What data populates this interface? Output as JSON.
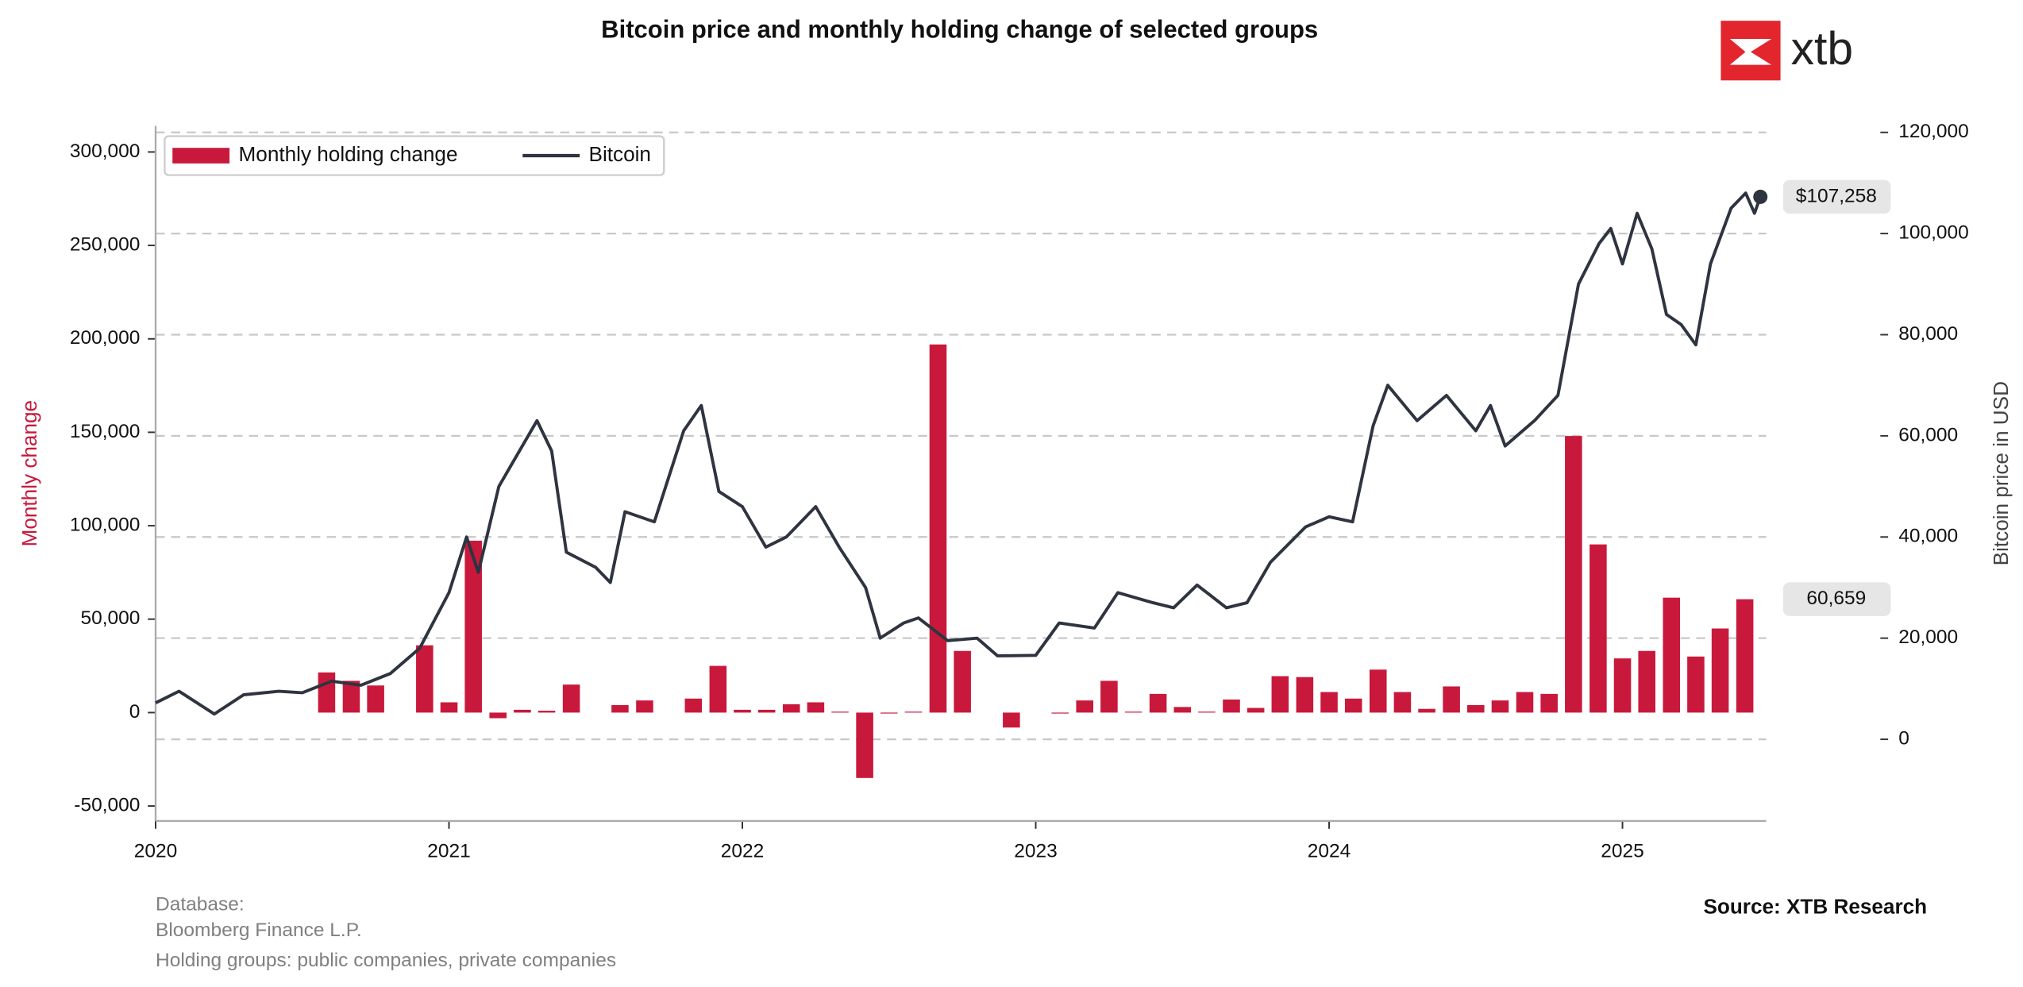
{
  "chart_data": {
    "type": "combo",
    "title": "Bitcoin price and monthly holding change of selected groups",
    "ylabel": "Monthly change",
    "y2label": "Bitcoin price in USD",
    "xlim": [
      2020,
      2025.49
    ],
    "xticks": [
      2020,
      2021,
      2022,
      2023,
      2024,
      2025
    ],
    "ylim": [
      -58000,
      314000
    ],
    "yticks": [
      {
        "value": -50000,
        "label": "-50,000"
      },
      {
        "value": 0,
        "label": "0"
      },
      {
        "value": 50000,
        "label": "50,000"
      },
      {
        "value": 100000,
        "label": "100,000"
      },
      {
        "value": 150000,
        "label": "150,000"
      },
      {
        "value": 200000,
        "label": "200,000"
      },
      {
        "value": 250000,
        "label": "250,000"
      },
      {
        "value": 300000,
        "label": "300,000"
      }
    ],
    "y2lim": [
      -16150,
      121300
    ],
    "y2ticks": [
      0,
      {
        "value": 20000,
        "label": "20,000"
      },
      {
        "value": 40000,
        "label": "40,000"
      },
      {
        "value": 60000,
        "label": "60,000"
      },
      {
        "value": 80000,
        "label": "80,000"
      },
      {
        "value": 100000,
        "label": "100,000"
      },
      {
        "value": 120000,
        "label": "120,000"
      }
    ],
    "grid": true,
    "legend": "upper left",
    "series": [
      {
        "name": "Monthly holding change",
        "type": "bar",
        "color": "#c8193c",
        "x": [
          2020.583,
          2020.667,
          2020.75,
          2020.917,
          2021.0,
          2021.083,
          2021.167,
          2021.25,
          2021.333,
          2021.417,
          2021.583,
          2021.667,
          2021.833,
          2021.917,
          2022.0,
          2022.083,
          2022.167,
          2022.25,
          2022.333,
          2022.417,
          2022.5,
          2022.583,
          2022.667,
          2022.75,
          2022.917,
          2023.083,
          2023.167,
          2023.25,
          2023.333,
          2023.417,
          2023.5,
          2023.583,
          2023.667,
          2023.75,
          2023.833,
          2023.917,
          2024.0,
          2024.083,
          2024.167,
          2024.25,
          2024.333,
          2024.417,
          2024.5,
          2024.583,
          2024.667,
          2024.75,
          2024.833,
          2024.917,
          2025.0,
          2025.083,
          2025.167,
          2025.25,
          2025.333,
          2025.417
        ],
        "values": [
          21500,
          17000,
          14500,
          36000,
          5500,
          92000,
          -3000,
          1500,
          1000,
          15000,
          4000,
          6500,
          7500,
          25000,
          1500,
          1500,
          4500,
          5500,
          500,
          -35000,
          -500,
          500,
          197000,
          33000,
          -8000,
          -500,
          6500,
          17000,
          500,
          10000,
          3000,
          500,
          7000,
          2500,
          19500,
          19000,
          11000,
          7500,
          23000,
          11000,
          2000,
          14000,
          4000,
          6500,
          11000,
          10000,
          148000,
          90000,
          29000,
          33000,
          61500,
          30000,
          45000,
          60659
        ],
        "last_value_label": "60,659"
      },
      {
        "name": "Bitcoin",
        "type": "line",
        "axis": "y2",
        "color": "#2e3440",
        "x": [
          2020.0,
          2020.08,
          2020.2,
          2020.3,
          2020.42,
          2020.5,
          2020.6,
          2020.7,
          2020.8,
          2020.9,
          2021.0,
          2021.06,
          2021.1,
          2021.17,
          2021.25,
          2021.3,
          2021.35,
          2021.4,
          2021.5,
          2021.55,
          2021.6,
          2021.7,
          2021.8,
          2021.86,
          2021.92,
          2022.0,
          2022.08,
          2022.15,
          2022.25,
          2022.33,
          2022.42,
          2022.47,
          2022.55,
          2022.6,
          2022.7,
          2022.8,
          2022.87,
          2023.0,
          2023.08,
          2023.2,
          2023.28,
          2023.4,
          2023.47,
          2023.55,
          2023.65,
          2023.72,
          2023.8,
          2023.92,
          2024.0,
          2024.08,
          2024.15,
          2024.2,
          2024.3,
          2024.4,
          2024.5,
          2024.55,
          2024.6,
          2024.7,
          2024.78,
          2024.85,
          2024.92,
          2024.96,
          2025.0,
          2025.05,
          2025.1,
          2025.15,
          2025.2,
          2025.25,
          2025.3,
          2025.37,
          2025.42,
          2025.45,
          2025.47
        ],
        "values": [
          7200,
          9500,
          5000,
          8800,
          9500,
          9200,
          11500,
          10700,
          13000,
          18000,
          29000,
          40000,
          33000,
          50000,
          58000,
          63000,
          57000,
          37000,
          34000,
          31000,
          45000,
          43000,
          61000,
          66000,
          49000,
          46000,
          38000,
          40000,
          46000,
          38000,
          30000,
          20000,
          23000,
          24000,
          19500,
          20000,
          16500,
          16600,
          23000,
          22000,
          29000,
          27000,
          26000,
          30500,
          26000,
          27000,
          35000,
          42000,
          44000,
          43000,
          62000,
          70000,
          63000,
          68000,
          61000,
          66000,
          58000,
          63000,
          68000,
          90000,
          98000,
          101000,
          94000,
          104000,
          97000,
          84000,
          82000,
          78000,
          94000,
          105000,
          108000,
          104000,
          107258
        ],
        "last_value_label": "$107,258"
      }
    ]
  },
  "logo": "xtb",
  "footer": {
    "database_label": "Database:",
    "database": "Bloomberg Finance L.P.",
    "groups": "Holding groups: public companies, private companies",
    "source": "Source: XTB Research"
  }
}
